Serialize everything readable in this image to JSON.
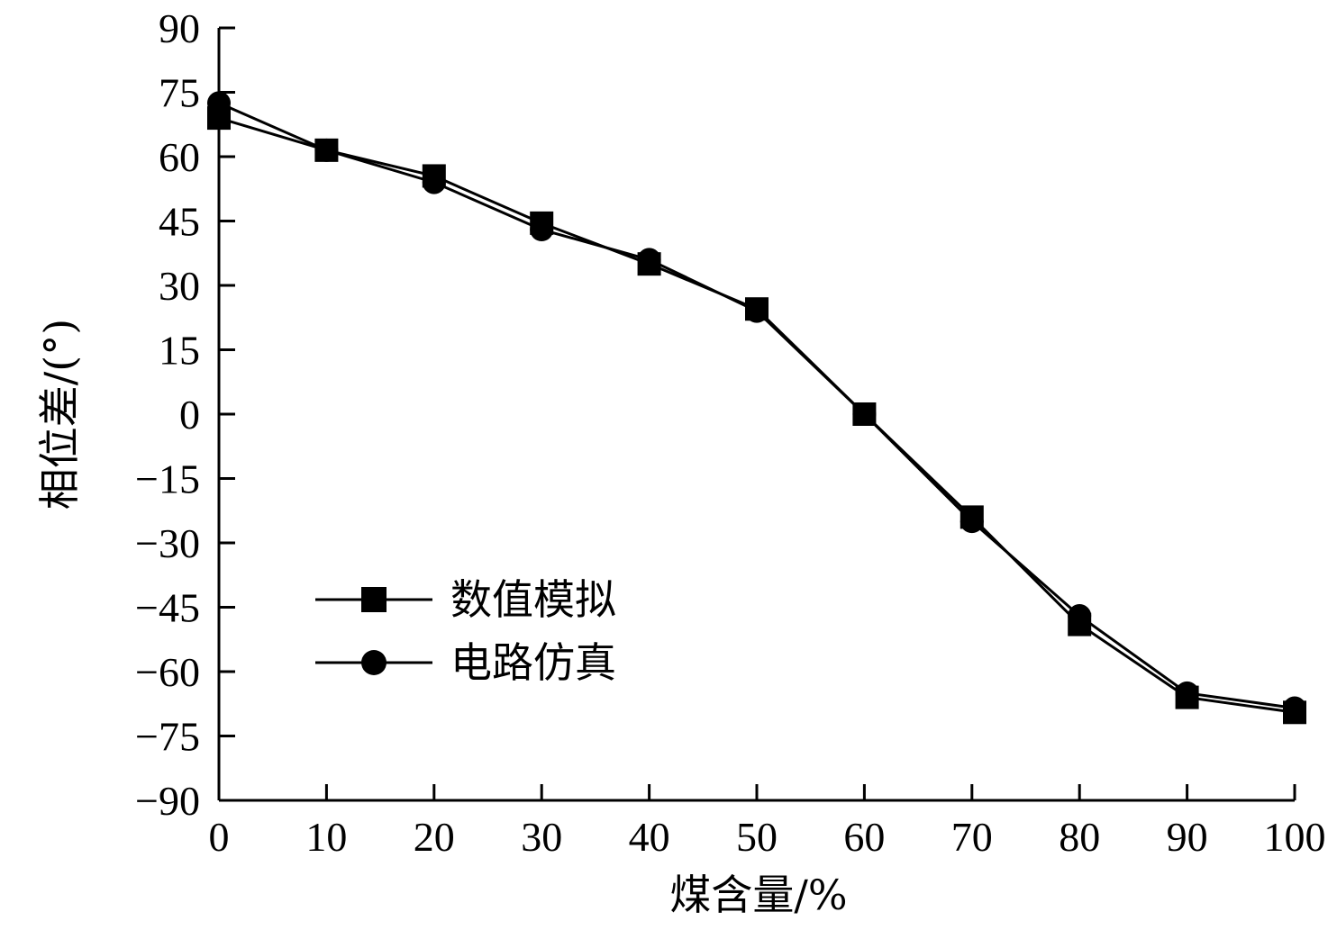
{
  "chart_data": {
    "type": "line",
    "xlabel": "煤含量/%",
    "ylabel": "相位差/(°)",
    "xlim": [
      0,
      100
    ],
    "ylim": [
      -90,
      90
    ],
    "x": [
      0,
      10,
      20,
      30,
      40,
      50,
      60,
      70,
      80,
      90,
      100
    ],
    "x_ticks": [
      "0",
      "10",
      "20",
      "30",
      "40",
      "50",
      "60",
      "70",
      "80",
      "90",
      "100"
    ],
    "y_ticks": [
      "90",
      "75",
      "60",
      "45",
      "30",
      "15",
      "0",
      "−15",
      "−30",
      "−45",
      "−60",
      "−75",
      "−90"
    ],
    "y_tick_values": [
      90,
      75,
      60,
      45,
      30,
      15,
      0,
      -15,
      -30,
      -45,
      -60,
      -75,
      -90
    ],
    "grid": false,
    "legend_position": "lower-left",
    "series": [
      {
        "name": "数值模拟",
        "marker": "square",
        "color": "#000000",
        "values": [
          69,
          61.5,
          55.5,
          44.5,
          35,
          24.5,
          0,
          -24,
          -49,
          -66,
          -69.5
        ]
      },
      {
        "name": "电路仿真",
        "marker": "circle",
        "color": "#000000",
        "values": [
          72.5,
          61.5,
          54,
          43,
          36,
          24,
          0,
          -25,
          -47,
          -65,
          -68.5
        ]
      }
    ]
  }
}
